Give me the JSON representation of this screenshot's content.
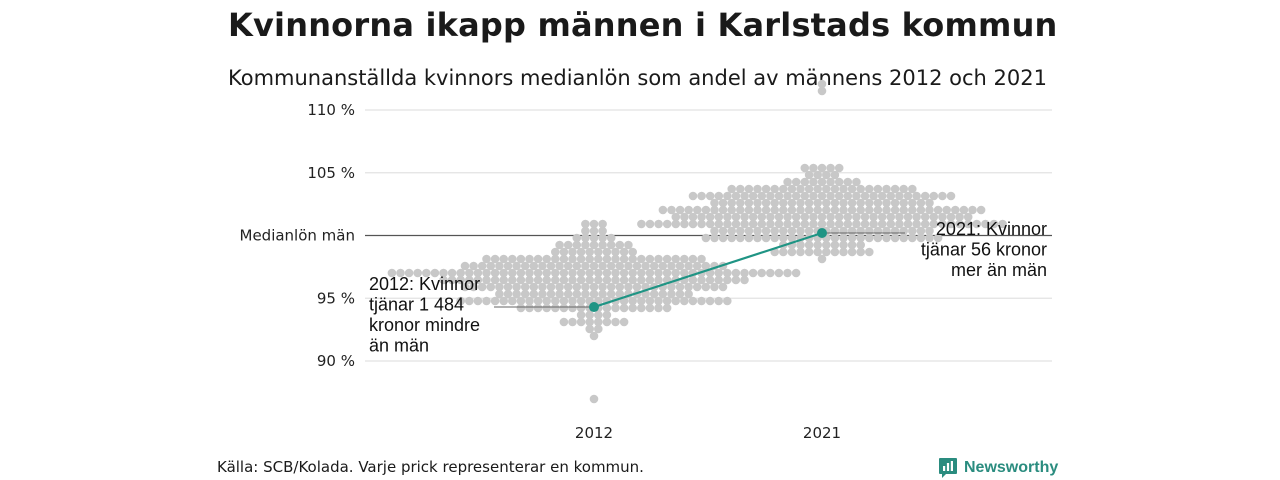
{
  "title": "Kvinnorna ikapp männen i Karlstads kommun",
  "subtitle": "Kommunanställda kvinnors medianlön som andel av männens 2012 och 2021",
  "footer": "Källa: SCB/Kolada. Varje prick representerar en kommun.",
  "brand": "Newsworthy",
  "chart_data": {
    "type": "scatter",
    "categories": [
      "2012",
      "2021"
    ],
    "ylim": [
      86.5,
      112
    ],
    "yticks": [
      {
        "value": 90,
        "label": "90 %"
      },
      {
        "value": 95,
        "label": "95 %"
      },
      {
        "value": 100,
        "label": "Medianlön män"
      },
      {
        "value": 105,
        "label": "105 %"
      },
      {
        "value": 110,
        "label": "110 %"
      }
    ],
    "grid": true,
    "beeswarm": [
      {
        "category": "2012",
        "min": 87,
        "max": 105.2,
        "center": 96.5,
        "spread": 3.2,
        "count": 290,
        "outliers": [
          86.9
        ]
      },
      {
        "category": "2021",
        "min": 92.5,
        "max": 112.2,
        "center": 101.5,
        "spread": 3.0,
        "count": 290,
        "outliers": [
          111.3,
          112.2
        ]
      }
    ],
    "highlight": {
      "name": "Karlstad",
      "color": "#1f9484",
      "points": [
        {
          "x": "2012",
          "y": 94.3
        },
        {
          "x": "2021",
          "y": 100.2
        }
      ]
    },
    "annotations": [
      {
        "x": "2012",
        "lines": [
          "2012: Kvinnor",
          "tjänar 1 484",
          "kronor mindre",
          "än män"
        ]
      },
      {
        "x": "2021",
        "lines": [
          "2021: Kvinnor",
          "tjänar 56 kronor",
          "mer än män"
        ]
      }
    ],
    "colors": {
      "dots": "#c8c8c8",
      "grid": "#e2e2e2",
      "reference": "#555555",
      "highlight": "#1f9484"
    }
  }
}
